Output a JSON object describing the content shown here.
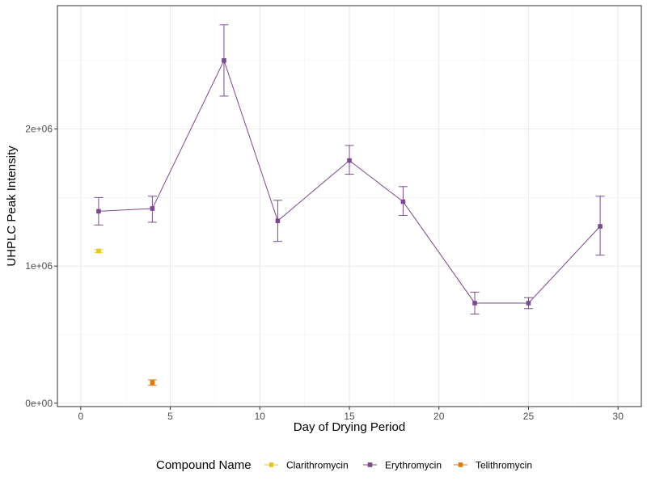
{
  "chart_data": {
    "type": "line",
    "xlabel": "Day of Drying Period",
    "ylabel": "UHPLC Peak Intensity",
    "xlim": [
      -1.3,
      31.3
    ],
    "ylim": [
      -25000,
      2900000
    ],
    "x_ticks": [
      0,
      5,
      10,
      15,
      20,
      25,
      30
    ],
    "x_tick_labels": [
      "0",
      "5",
      "10",
      "15",
      "20",
      "25",
      "30"
    ],
    "y_ticks": [
      0,
      1000000,
      2000000
    ],
    "y_tick_labels": [
      "0e+00",
      "1e+06",
      "2e+06"
    ],
    "y_minor_ticks": [
      500000,
      1500000,
      2500000
    ],
    "x_minor_ticks": [
      2.5,
      7.5,
      12.5,
      17.5,
      22.5,
      27.5
    ],
    "grid": true,
    "legend": {
      "title": "Compound Name",
      "position": "bottom"
    },
    "series": [
      {
        "name": "Clarithromycin",
        "color": "#e6c619",
        "connect": true,
        "points": [
          {
            "x": 1,
            "y": 1110000,
            "lo": 1100000,
            "hi": 1120000
          }
        ]
      },
      {
        "name": "Erythromycin",
        "color": "#7b4a8e",
        "connect": true,
        "points": [
          {
            "x": 1,
            "y": 1400000,
            "lo": 1300000,
            "hi": 1500000
          },
          {
            "x": 4,
            "y": 1420000,
            "lo": 1320000,
            "hi": 1510000
          },
          {
            "x": 8,
            "y": 2500000,
            "lo": 2240000,
            "hi": 2760000
          },
          {
            "x": 11,
            "y": 1330000,
            "lo": 1180000,
            "hi": 1480000
          },
          {
            "x": 15,
            "y": 1770000,
            "lo": 1670000,
            "hi": 1880000
          },
          {
            "x": 18,
            "y": 1470000,
            "lo": 1370000,
            "hi": 1580000
          },
          {
            "x": 22,
            "y": 730000,
            "lo": 650000,
            "hi": 810000
          },
          {
            "x": 25,
            "y": 730000,
            "lo": 690000,
            "hi": 770000
          },
          {
            "x": 29,
            "y": 1290000,
            "lo": 1080000,
            "hi": 1510000
          }
        ]
      },
      {
        "name": "Telithromycin",
        "color": "#e07b0b",
        "connect": true,
        "points": [
          {
            "x": 4,
            "y": 150000,
            "lo": 130000,
            "hi": 170000
          }
        ]
      }
    ]
  }
}
